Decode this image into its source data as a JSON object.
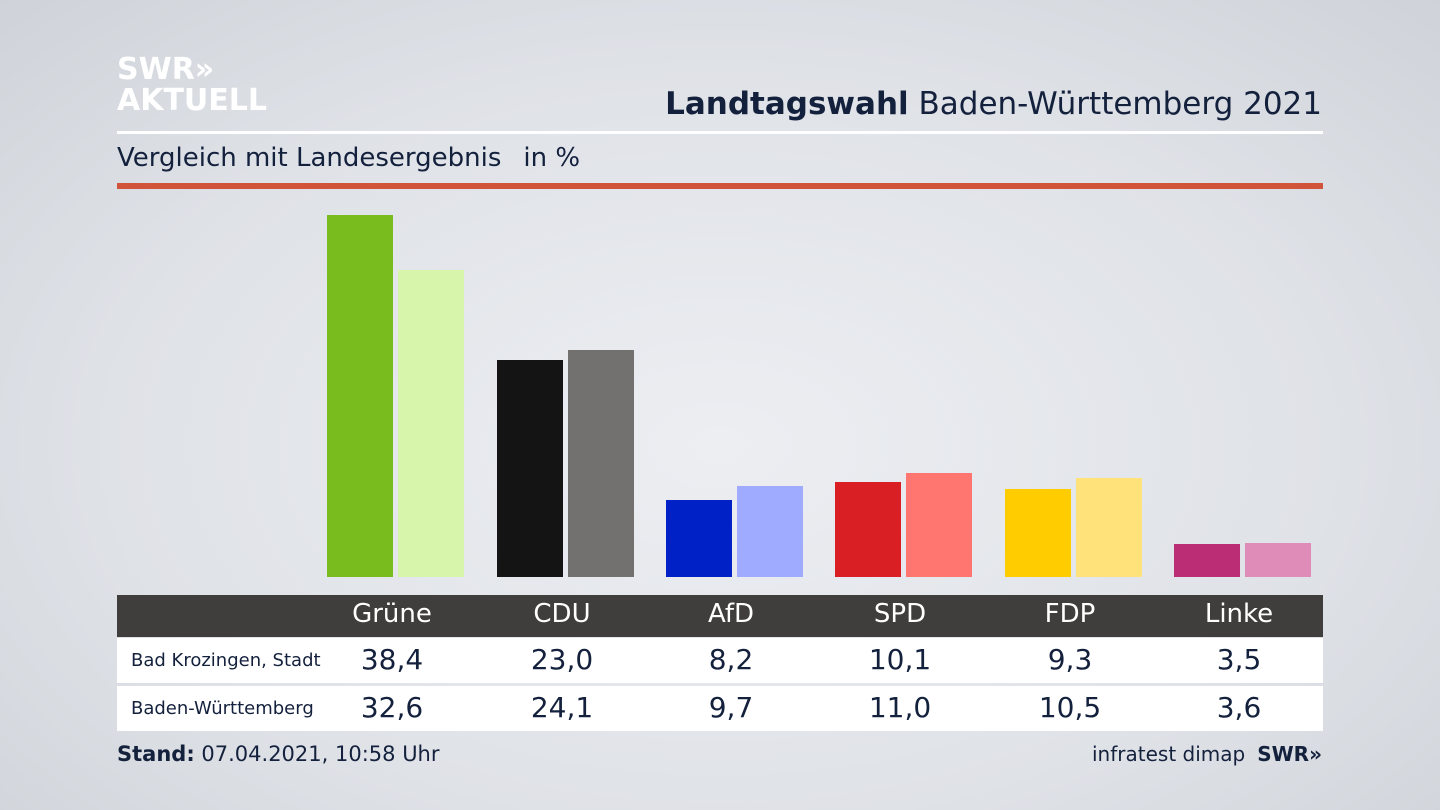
{
  "header": {
    "logo_line1": "SWR»",
    "logo_line2": "AKTUELL",
    "title_bold": "Landtagswahl",
    "title_rest": "Baden-Württemberg 2021",
    "subtitle": "Vergleich mit Landesergebnis",
    "unit": "in %"
  },
  "chart_data": {
    "type": "bar",
    "title": "Landtagswahl Baden-Württemberg 2021",
    "subtitle": "Vergleich mit Landesergebnis in %",
    "categories": [
      "Grüne",
      "CDU",
      "AfD",
      "SPD",
      "FDP",
      "Linke"
    ],
    "series": [
      {
        "name": "Bad Krozingen, Stadt",
        "values": [
          38.4,
          23.0,
          8.2,
          10.1,
          9.3,
          3.5
        ],
        "labels": [
          "38,4",
          "23,0",
          "8,2",
          "10,1",
          "9,3",
          "3,5"
        ],
        "colors": [
          "#78bc1e",
          "#141414",
          "#0021c6",
          "#d91f23",
          "#ffcc00",
          "#bb2d74"
        ]
      },
      {
        "name": "Baden-Württemberg",
        "values": [
          32.6,
          24.1,
          9.7,
          11.0,
          10.5,
          3.6
        ],
        "labels": [
          "32,6",
          "24,1",
          "9,7",
          "11,0",
          "10,5",
          "3,6"
        ],
        "colors": [
          "#d7f5ab",
          "#73716f",
          "#9eabff",
          "#ff7670",
          "#ffe27a",
          "#e08cb8"
        ]
      }
    ],
    "ylim": [
      0,
      40
    ]
  },
  "footer": {
    "stand_label": "Stand:",
    "stand_value": "07.04.2021, 10:58 Uhr",
    "source": "infratest dimap",
    "source_logo": "SWR»"
  }
}
